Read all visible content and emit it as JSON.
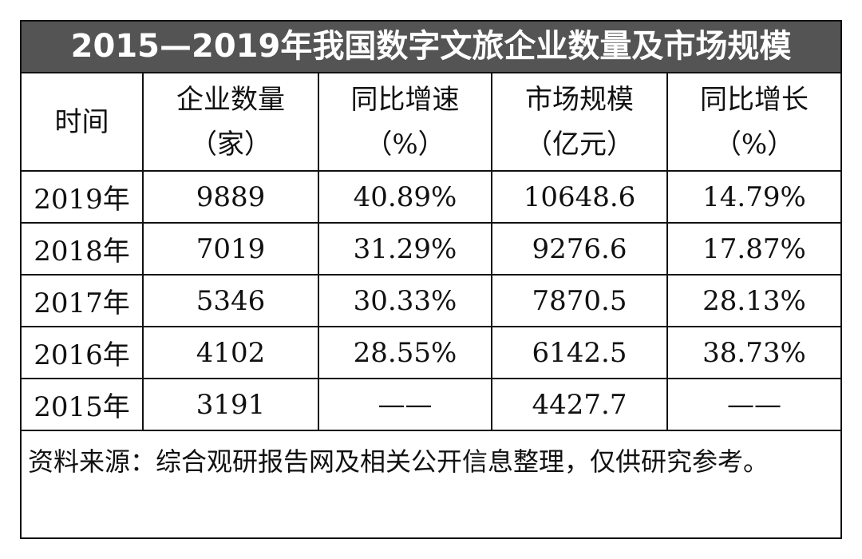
{
  "title": "2015—2019年我国数字文旅企业数量及市场规模",
  "table": {
    "header": [
      [
        "时间"
      ],
      [
        "企业数量",
        "（家）"
      ],
      [
        "同比增速",
        "（%）"
      ],
      [
        "市场规模",
        "（亿元）"
      ],
      [
        "同比增长",
        "（%）"
      ]
    ],
    "rows": [
      [
        "2019年",
        "9889",
        "40.89%",
        "10648.6",
        "14.79%"
      ],
      [
        "2018年",
        "7019",
        "31.29%",
        "9276.6",
        "17.87%"
      ],
      [
        "2017年",
        "5346",
        "30.33%",
        "7870.5",
        "28.13%"
      ],
      [
        "2016年",
        "4102",
        "28.55%",
        "6142.5",
        "38.73%"
      ],
      [
        "2015年",
        "3191",
        "——",
        "4427.7",
        "——"
      ]
    ]
  },
  "source": "资料来源：综合观研报告网及相关公开信息整理，仅供研究参考。"
}
